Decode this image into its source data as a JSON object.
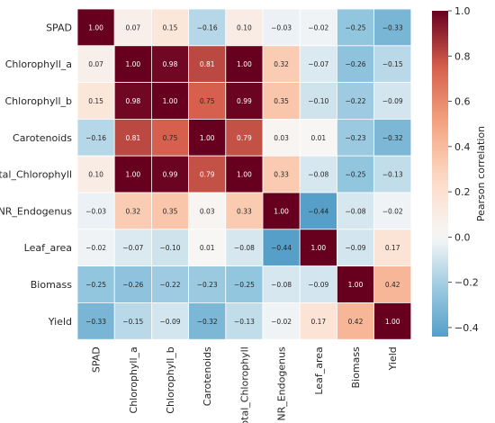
{
  "chart_data": {
    "type": "heatmap",
    "title": "",
    "variables": [
      "SPAD",
      "Chlorophyll_a",
      "Chlorophyll_b",
      "Carotenoids",
      "Total_Chlorophyll",
      "NR_Endogenus",
      "Leaf_area",
      "Biomass",
      "Yield"
    ],
    "matrix": [
      [
        1.0,
        0.07,
        0.15,
        -0.16,
        0.1,
        -0.03,
        -0.02,
        -0.25,
        -0.33
      ],
      [
        0.07,
        1.0,
        0.98,
        0.81,
        1.0,
        0.32,
        -0.07,
        -0.26,
        -0.15
      ],
      [
        0.15,
        0.98,
        1.0,
        0.75,
        0.99,
        0.35,
        -0.1,
        -0.22,
        -0.09
      ],
      [
        -0.16,
        0.81,
        0.75,
        1.0,
        0.79,
        0.03,
        0.01,
        -0.23,
        -0.32
      ],
      [
        0.1,
        1.0,
        0.99,
        0.79,
        1.0,
        0.33,
        -0.08,
        -0.25,
        -0.13
      ],
      [
        -0.03,
        0.32,
        0.35,
        0.03,
        0.33,
        1.0,
        -0.44,
        -0.08,
        -0.02
      ],
      [
        -0.02,
        -0.07,
        -0.1,
        0.01,
        -0.08,
        -0.44,
        1.0,
        -0.09,
        0.17
      ],
      [
        -0.25,
        -0.26,
        -0.22,
        -0.23,
        -0.25,
        -0.08,
        -0.09,
        1.0,
        0.42
      ],
      [
        -0.33,
        -0.15,
        -0.09,
        -0.32,
        -0.13,
        -0.02,
        0.17,
        0.42,
        1.0
      ]
    ],
    "cell_labels": [
      [
        "1.00",
        "0.07",
        "0.15",
        "−0.16",
        "0.10",
        "−0.03",
        "−0.02",
        "−0.25",
        "−0.33"
      ],
      [
        "0.07",
        "1.00",
        "0.98",
        "0.81",
        "1.00",
        "0.32",
        "−0.07",
        "−0.26",
        "−0.15"
      ],
      [
        "0.15",
        "0.98",
        "1.00",
        "0.75",
        "0.99",
        "0.35",
        "−0.10",
        "−0.22",
        "−0.09"
      ],
      [
        "−0.16",
        "0.81",
        "0.75",
        "1.00",
        "0.79",
        "0.03",
        "0.01",
        "−0.23",
        "−0.32"
      ],
      [
        "0.10",
        "1.00",
        "0.99",
        "0.79",
        "1.00",
        "0.33",
        "−0.08",
        "−0.25",
        "−0.13"
      ],
      [
        "−0.03",
        "0.32",
        "0.35",
        "0.03",
        "0.33",
        "1.00",
        "−0.44",
        "−0.08",
        "−0.02"
      ],
      [
        "−0.02",
        "−0.07",
        "−0.10",
        "0.01",
        "−0.08",
        "−0.44",
        "1.00",
        "−0.09",
        "0.17"
      ],
      [
        "−0.25",
        "−0.26",
        "−0.22",
        "−0.23",
        "−0.25",
        "−0.08",
        "−0.09",
        "1.00",
        "0.42"
      ],
      [
        "−0.33",
        "−0.15",
        "−0.09",
        "−0.32",
        "−0.13",
        "−0.02",
        "0.17",
        "0.42",
        "1.00"
      ]
    ],
    "colorbar": {
      "label": "Pearson correlation",
      "range": [
        -0.44,
        1.0
      ],
      "ticks": [
        1.0,
        0.8,
        0.6,
        0.4,
        0.2,
        0.0,
        -0.2,
        -0.4
      ],
      "tick_labels": [
        "1.0",
        "0.8",
        "0.6",
        "0.4",
        "0.2",
        "0.0",
        "−0.2",
        "−0.4"
      ],
      "colormap": "RdBu_r (centered at 0)"
    },
    "colors": {
      "negative_end": "#6aaed6",
      "center": "#f7f7f7",
      "positive_end": "#67001f"
    }
  }
}
